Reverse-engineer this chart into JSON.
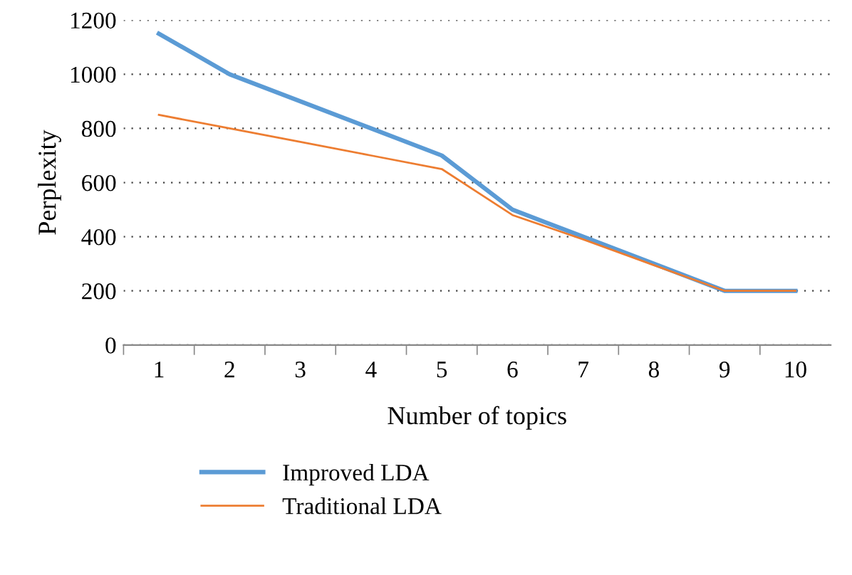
{
  "chart_data": {
    "type": "line",
    "xlabel": "Number of topics",
    "ylabel": "Perplexity",
    "categories": [
      "1",
      "2",
      "3",
      "4",
      "5",
      "6",
      "7",
      "8",
      "9",
      "10"
    ],
    "series": [
      {
        "name": "Improved LDA",
        "color": "#5b9bd5",
        "values": [
          1150,
          1000,
          900,
          800,
          700,
          500,
          400,
          300,
          200,
          200
        ]
      },
      {
        "name": "Traditional LDA",
        "color": "#ed7d31",
        "values": [
          850,
          800,
          750,
          700,
          650,
          480,
          390,
          295,
          200,
          200
        ]
      }
    ],
    "ylim": [
      0,
      1200
    ],
    "yticks": [
      0,
      200,
      400,
      600,
      800,
      1000,
      1200
    ],
    "grid": "y",
    "legend": "bottom",
    "marker": "none",
    "line_style": "solid"
  }
}
